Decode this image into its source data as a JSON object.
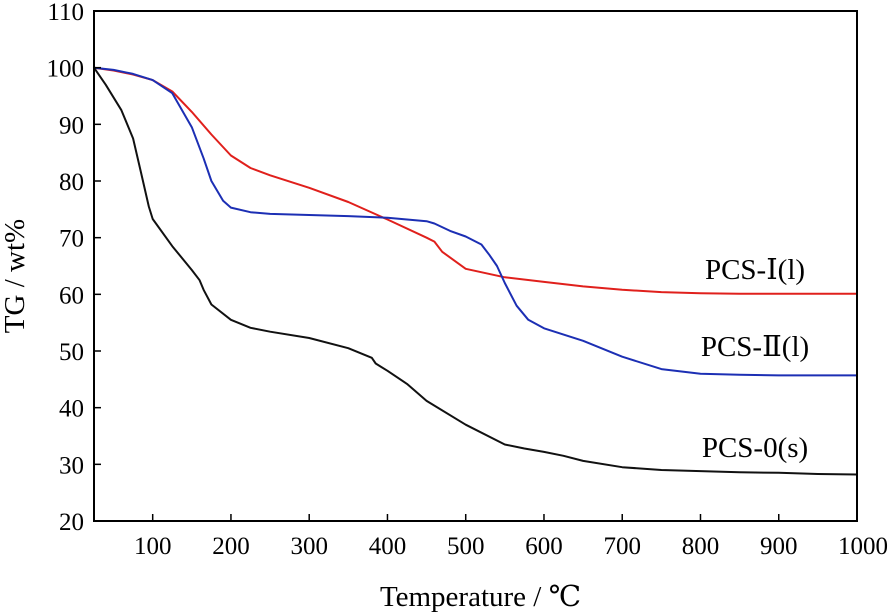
{
  "chart_data": {
    "type": "line",
    "xlabel": "Temperature / ℃",
    "ylabel": "TG / wt%",
    "xlim": [
      25,
      1000
    ],
    "ylim": [
      20,
      110
    ],
    "xticks": [
      100,
      200,
      300,
      400,
      500,
      600,
      700,
      800,
      900,
      1000
    ],
    "yticks": [
      20,
      30,
      40,
      50,
      60,
      70,
      80,
      90,
      100,
      110
    ],
    "grid": false,
    "legend": "inline labels at right end of curves",
    "series": [
      {
        "name": "PCS-Ⅰ(l)",
        "color": "#e0201c",
        "x": [
          25,
          50,
          75,
          100,
          125,
          150,
          175,
          200,
          225,
          250,
          300,
          350,
          400,
          450,
          460,
          470,
          500,
          550,
          600,
          650,
          700,
          750,
          800,
          850,
          900,
          950,
          1000
        ],
        "y": [
          100,
          99.5,
          98.8,
          97.8,
          95.8,
          92.2,
          88.2,
          84.5,
          82.3,
          81,
          78.8,
          76.3,
          73.2,
          70,
          69.3,
          67.5,
          64.5,
          63,
          62.2,
          61.4,
          60.8,
          60.4,
          60.2,
          60.1,
          60.1,
          60.1,
          60.1
        ]
      },
      {
        "name": "PCS-Ⅱ(l)",
        "color": "#1c2fb4",
        "x": [
          25,
          50,
          75,
          100,
          125,
          150,
          165,
          175,
          190,
          200,
          225,
          250,
          300,
          350,
          400,
          450,
          460,
          480,
          500,
          520,
          530,
          540,
          550,
          565,
          580,
          600,
          650,
          700,
          750,
          800,
          850,
          900,
          950,
          1000
        ],
        "y": [
          100,
          99.6,
          98.9,
          97.8,
          95.5,
          89.5,
          84,
          80,
          76.5,
          75.3,
          74.5,
          74.2,
          74,
          73.8,
          73.5,
          72.9,
          72.5,
          71.2,
          70.2,
          68.8,
          67,
          65,
          62,
          58,
          55.5,
          54,
          51.8,
          49,
          46.8,
          46,
          45.8,
          45.7,
          45.7,
          45.7
        ]
      },
      {
        "name": "PCS-0(s)",
        "color": "#111111",
        "x": [
          25,
          40,
          60,
          75,
          85,
          95,
          100,
          125,
          150,
          160,
          165,
          175,
          200,
          225,
          250,
          300,
          350,
          380,
          385,
          400,
          425,
          450,
          500,
          550,
          575,
          600,
          625,
          650,
          700,
          750,
          800,
          850,
          900,
          950,
          1000
        ],
        "y": [
          100,
          97,
          92.5,
          87.5,
          81.5,
          75.5,
          73.3,
          68.5,
          64.3,
          62.5,
          60.8,
          58.2,
          55.5,
          54.1,
          53.4,
          52.3,
          50.5,
          48.8,
          47.8,
          46.5,
          44.2,
          41.2,
          37,
          33.5,
          32.8,
          32.2,
          31.5,
          30.6,
          29.5,
          29,
          28.8,
          28.6,
          28.5,
          28.3,
          28.2
        ]
      }
    ]
  }
}
